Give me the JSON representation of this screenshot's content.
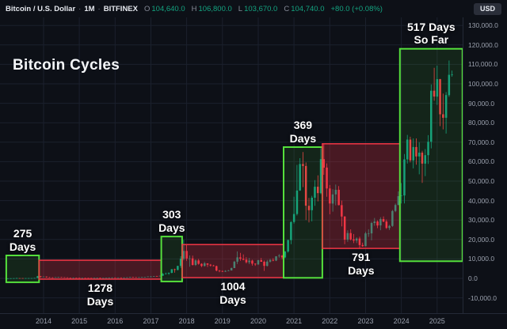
{
  "header": {
    "symbol": "Bitcoin / U.S. Dollar",
    "sep1": "·",
    "interval": "1M",
    "sep2": "·",
    "exchange": "BITFINEX",
    "o_label": "O",
    "o_value": "104,640.0",
    "h_label": "H",
    "h_value": "106,800.0",
    "l_label": "L",
    "l_value": "103,670.0",
    "c_label": "C",
    "c_value": "104,740.0",
    "change": "+80.0 (+0.08%)",
    "currency_button": "USD"
  },
  "title": "Bitcoin Cycles",
  "price_axis": {
    "labels": [
      "130,000.0",
      "120,000.0",
      "110,000.0",
      "100,000.0",
      "90,000.0",
      "80,000.0",
      "70,000.0",
      "60,000.0",
      "50,000.0",
      "40,000.0",
      "30,000.0",
      "20,000.0",
      "10,000.0",
      "0.0",
      "-10,000.0"
    ]
  },
  "time_axis": {
    "labels": [
      "2014",
      "2015",
      "2016",
      "2017",
      "2018",
      "2019",
      "2020",
      "2021",
      "2022",
      "2023",
      "2024",
      "2025"
    ]
  },
  "chart_data": {
    "type": "candlestick",
    "title": "Bitcoin Cycles",
    "symbol": "Bitcoin / U.S. Dollar",
    "exchange": "BITFINEX",
    "interval": "1M",
    "start_month": "2013-01",
    "visible_price_range": [
      -17900,
      134100
    ],
    "visible_time_range": [
      "2013-01",
      "2025-11"
    ],
    "grid": true,
    "colors": {
      "up": "#0f9b80",
      "down": "#f23645",
      "bull_box": "#55e03c",
      "bear_box": "#f23645"
    },
    "last_candle": {
      "open": 104640.0,
      "high": 106800.0,
      "low": 103670.0,
      "close": 104740.0,
      "change": 80.0,
      "change_pct": 0.08
    },
    "candles_ohlc": [
      [
        13,
        21,
        13,
        20
      ],
      [
        20,
        34,
        19,
        33
      ],
      [
        33,
        95,
        33,
        93
      ],
      [
        93,
        266,
        50,
        139
      ],
      [
        139,
        140,
        79,
        129
      ],
      [
        129,
        130,
        88,
        97
      ],
      [
        97,
        112,
        63,
        106
      ],
      [
        106,
        147,
        92,
        141
      ],
      [
        141,
        147,
        109,
        141
      ],
      [
        141,
        233,
        109,
        211
      ],
      [
        211,
        1240,
        200,
        1100
      ],
      [
        1100,
        1240,
        380,
        805
      ],
      [
        805,
        1000,
        740,
        940
      ],
      [
        940,
        960,
        400,
        580
      ],
      [
        580,
        700,
        420,
        480
      ],
      [
        480,
        550,
        340,
        450
      ],
      [
        450,
        630,
        420,
        620
      ],
      [
        620,
        680,
        540,
        640
      ],
      [
        640,
        660,
        560,
        580
      ],
      [
        580,
        600,
        440,
        480
      ],
      [
        480,
        490,
        365,
        390
      ],
      [
        390,
        410,
        275,
        340
      ],
      [
        340,
        460,
        320,
        375
      ],
      [
        375,
        385,
        280,
        320
      ],
      [
        320,
        320,
        150,
        230
      ],
      [
        230,
        270,
        210,
        250
      ],
      [
        250,
        300,
        230,
        245
      ],
      [
        245,
        260,
        210,
        235
      ],
      [
        235,
        250,
        225,
        230
      ],
      [
        230,
        270,
        220,
        265
      ],
      [
        265,
        315,
        240,
        285
      ],
      [
        285,
        290,
        160,
        230
      ],
      [
        230,
        250,
        220,
        235
      ],
      [
        235,
        335,
        235,
        315
      ],
      [
        315,
        500,
        295,
        375
      ],
      [
        375,
        470,
        340,
        430
      ],
      [
        430,
        435,
        350,
        370
      ],
      [
        370,
        450,
        365,
        435
      ],
      [
        435,
        440,
        380,
        415
      ],
      [
        415,
        470,
        410,
        450
      ],
      [
        450,
        550,
        440,
        530
      ],
      [
        530,
        780,
        510,
        670
      ],
      [
        670,
        700,
        590,
        625
      ],
      [
        625,
        630,
        465,
        575
      ],
      [
        575,
        630,
        565,
        610
      ],
      [
        610,
        700,
        600,
        700
      ],
      [
        700,
        755,
        670,
        745
      ],
      [
        745,
        980,
        740,
        965
      ],
      [
        965,
        1180,
        750,
        970
      ],
      [
        970,
        1225,
        920,
        1190
      ],
      [
        1190,
        1330,
        890,
        1080
      ],
      [
        1080,
        1340,
        1060,
        1350
      ],
      [
        1350,
        2760,
        1320,
        2300
      ],
      [
        2300,
        2980,
        2100,
        2480
      ],
      [
        2480,
        2920,
        1830,
        2880
      ],
      [
        2880,
        4750,
        2650,
        4735
      ],
      [
        4735,
        4950,
        2970,
        4360
      ],
      [
        4360,
        6450,
        4100,
        6440
      ],
      [
        6440,
        11400,
        5400,
        10100
      ],
      [
        10100,
        19800,
        9300,
        14100
      ],
      [
        14100,
        17200,
        9000,
        10200
      ],
      [
        10200,
        11800,
        6000,
        10300
      ],
      [
        10300,
        11700,
        6600,
        6930
      ],
      [
        6930,
        9760,
        6430,
        9240
      ],
      [
        9240,
        9990,
        7050,
        7490
      ],
      [
        7490,
        7750,
        5770,
        6400
      ],
      [
        6400,
        8500,
        6070,
        7730
      ],
      [
        7730,
        7760,
        5860,
        7030
      ],
      [
        7030,
        7410,
        6100,
        6620
      ],
      [
        6620,
        6940,
        6200,
        6300
      ],
      [
        6300,
        6550,
        3620,
        4030
      ],
      [
        4030,
        4300,
        3150,
        3740
      ],
      [
        3740,
        4110,
        3350,
        3430
      ],
      [
        3430,
        4190,
        3350,
        3820
      ],
      [
        3820,
        4290,
        3660,
        4100
      ],
      [
        4100,
        5620,
        4030,
        5270
      ],
      [
        5270,
        9070,
        5270,
        8560
      ],
      [
        8560,
        13880,
        7430,
        10800
      ],
      [
        10800,
        13130,
        9080,
        10080
      ],
      [
        10080,
        12320,
        9320,
        9600
      ],
      [
        9600,
        10900,
        7700,
        8300
      ],
      [
        8300,
        10540,
        7300,
        9150
      ],
      [
        9150,
        9550,
        6530,
        7550
      ],
      [
        7550,
        7740,
        6430,
        7190
      ],
      [
        7190,
        9570,
        6850,
        9350
      ],
      [
        9350,
        10500,
        8520,
        8540
      ],
      [
        8540,
        9170,
        3850,
        6440
      ],
      [
        6440,
        9470,
        6150,
        8630
      ],
      [
        8630,
        10070,
        8100,
        9450
      ],
      [
        9450,
        10380,
        8830,
        9140
      ],
      [
        9140,
        11440,
        8900,
        11350
      ],
      [
        11350,
        12480,
        10630,
        11650
      ],
      [
        11650,
        12050,
        9830,
        10780
      ],
      [
        10780,
        14100,
        10380,
        13800
      ],
      [
        13800,
        19860,
        13200,
        19700
      ],
      [
        19700,
        29300,
        17600,
        29000
      ],
      [
        29000,
        42000,
        28130,
        33100
      ],
      [
        33100,
        58350,
        32300,
        45160
      ],
      [
        45160,
        61800,
        44950,
        58770
      ],
      [
        58770,
        64900,
        46930,
        57750
      ],
      [
        57750,
        59590,
        30000,
        37330
      ],
      [
        37330,
        41330,
        28800,
        35040
      ],
      [
        35040,
        42450,
        29300,
        41460
      ],
      [
        41460,
        50500,
        37330,
        47110
      ],
      [
        47110,
        52950,
        39600,
        43820
      ],
      [
        43820,
        66990,
        43280,
        61320
      ],
      [
        61320,
        69000,
        53260,
        56950
      ],
      [
        56950,
        59120,
        42000,
        46210
      ],
      [
        46210,
        47990,
        32950,
        38480
      ],
      [
        38480,
        45820,
        34320,
        43190
      ],
      [
        43190,
        48240,
        37550,
        45530
      ],
      [
        45530,
        47450,
        37580,
        37650
      ],
      [
        37650,
        40020,
        26700,
        31790
      ],
      [
        31790,
        31990,
        17590,
        19940
      ],
      [
        19940,
        24670,
        18780,
        23290
      ],
      [
        23290,
        25210,
        19520,
        20050
      ],
      [
        20050,
        22800,
        18120,
        19420
      ],
      [
        19420,
        21080,
        18190,
        20490
      ],
      [
        20490,
        21480,
        15480,
        17160
      ],
      [
        17160,
        18390,
        16250,
        16540
      ],
      [
        16540,
        23960,
        16490,
        23130
      ],
      [
        23130,
        25250,
        21350,
        23140
      ],
      [
        23140,
        29180,
        19550,
        28470
      ],
      [
        28470,
        31050,
        27050,
        29230
      ],
      [
        29230,
        29850,
        25810,
        27210
      ],
      [
        27210,
        31430,
        24750,
        30470
      ],
      [
        30470,
        31850,
        28860,
        29230
      ],
      [
        29230,
        30230,
        25350,
        25930
      ],
      [
        25930,
        27480,
        24900,
        26960
      ],
      [
        26960,
        35150,
        26530,
        34650
      ],
      [
        34650,
        38450,
        34080,
        37710
      ],
      [
        37710,
        44700,
        37600,
        42280
      ],
      [
        42280,
        48970,
        38500,
        42580
      ],
      [
        42580,
        63930,
        38530,
        61170
      ],
      [
        61170,
        73750,
        59010,
        71330
      ],
      [
        71330,
        72790,
        59600,
        60640
      ],
      [
        60640,
        71970,
        56550,
        67530
      ],
      [
        67530,
        71950,
        58450,
        62680
      ],
      [
        62680,
        69980,
        53500,
        64620
      ],
      [
        64620,
        65600,
        49050,
        58970
      ],
      [
        58970,
        66480,
        52550,
        63330
      ],
      [
        63330,
        73620,
        58870,
        70220
      ],
      [
        70220,
        99660,
        66830,
        96450
      ],
      [
        96450,
        108270,
        91320,
        93430
      ],
      [
        93430,
        109360,
        89160,
        102400
      ],
      [
        102400,
        102500,
        78260,
        84350
      ],
      [
        84350,
        95000,
        76600,
        82550
      ],
      [
        82550,
        95770,
        74420,
        94210
      ],
      [
        94210,
        112000,
        93300,
        104640
      ],
      [
        104640,
        106800,
        103670,
        104740
      ]
    ],
    "cycles": [
      {
        "label": "275 Days",
        "label_lines": [
          "275",
          "Days"
        ],
        "days": 275,
        "kind": "bull",
        "start_index": 0,
        "end_index": 11,
        "price_low": -2000,
        "price_high": 11800,
        "label_position": "above"
      },
      {
        "label": "1278 Days",
        "label_lines": [
          "1278",
          "Days"
        ],
        "days": 1278,
        "kind": "bear",
        "start_index": 11,
        "end_index": 52,
        "price_low": -400,
        "price_high": 9300,
        "label_position": "below"
      },
      {
        "label": "303 Days",
        "label_lines": [
          "303",
          "Days"
        ],
        "days": 303,
        "kind": "bull",
        "start_index": 52,
        "end_index": 59,
        "price_low": -1600,
        "price_high": 21500,
        "label_position": "above"
      },
      {
        "label": "1004 Days",
        "label_lines": [
          "1004",
          "Days"
        ],
        "days": 1004,
        "kind": "bear",
        "start_index": 59,
        "end_index": 93,
        "price_low": 400,
        "price_high": 17400,
        "label_position": "below"
      },
      {
        "label": "369 Days",
        "label_lines": [
          "369",
          "Days"
        ],
        "days": 369,
        "kind": "bull",
        "start_index": 93,
        "end_index": 106,
        "price_low": 300,
        "price_high": 67500,
        "label_position": "above"
      },
      {
        "label": "791 Days",
        "label_lines": [
          "791",
          "Days"
        ],
        "days": 791,
        "kind": "bear",
        "start_index": 106,
        "end_index": 132,
        "price_low": 15400,
        "price_high": 69200,
        "label_position": "below"
      },
      {
        "label": "517 Days So Far",
        "label_lines": [
          "517 Days",
          "So Far"
        ],
        "days": 517,
        "kind": "bull",
        "start_index": 132,
        "end_index": 153,
        "price_low": 8800,
        "price_high": 118000,
        "label_position": "above"
      }
    ]
  }
}
